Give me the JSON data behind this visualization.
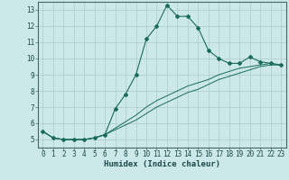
{
  "xlabel": "Humidex (Indice chaleur)",
  "bg_color": "#cce8e8",
  "grid_color": "#aacccc",
  "line_color": "#1a6b5a",
  "xlim": [
    -0.5,
    23.5
  ],
  "ylim": [
    4.5,
    13.5
  ],
  "xticks": [
    0,
    1,
    2,
    3,
    4,
    5,
    6,
    7,
    8,
    9,
    10,
    11,
    12,
    13,
    14,
    15,
    16,
    17,
    18,
    19,
    20,
    21,
    22,
    23
  ],
  "yticks": [
    5,
    6,
    7,
    8,
    9,
    10,
    11,
    12,
    13
  ],
  "main_line_x": [
    0,
    1,
    2,
    3,
    4,
    5,
    6,
    7,
    8,
    9,
    10,
    11,
    12,
    13,
    14,
    15,
    16,
    17,
    18,
    19,
    20,
    21,
    22,
    23
  ],
  "main_line_y": [
    5.5,
    5.1,
    5.0,
    5.0,
    5.0,
    5.1,
    5.3,
    6.9,
    7.8,
    9.0,
    11.2,
    12.0,
    13.3,
    12.6,
    12.6,
    11.9,
    10.5,
    10.0,
    9.7,
    9.7,
    10.1,
    9.8,
    9.7,
    9.6
  ],
  "lower_line1_x": [
    0,
    1,
    2,
    3,
    4,
    5,
    6,
    7,
    8,
    9,
    10,
    11,
    12,
    13,
    14,
    15,
    16,
    17,
    18,
    19,
    20,
    21,
    22,
    23
  ],
  "lower_line1_y": [
    5.5,
    5.1,
    5.0,
    5.0,
    5.0,
    5.1,
    5.3,
    5.7,
    6.1,
    6.5,
    7.0,
    7.4,
    7.7,
    8.0,
    8.3,
    8.5,
    8.7,
    9.0,
    9.2,
    9.4,
    9.5,
    9.6,
    9.7,
    9.6
  ],
  "lower_line2_x": [
    0,
    1,
    2,
    3,
    4,
    5,
    6,
    7,
    8,
    9,
    10,
    11,
    12,
    13,
    14,
    15,
    16,
    17,
    18,
    19,
    20,
    21,
    22,
    23
  ],
  "lower_line2_y": [
    5.5,
    5.1,
    5.0,
    5.0,
    5.0,
    5.1,
    5.3,
    5.6,
    5.9,
    6.2,
    6.6,
    7.0,
    7.3,
    7.6,
    7.9,
    8.1,
    8.4,
    8.7,
    8.9,
    9.1,
    9.3,
    9.5,
    9.6,
    9.6
  ],
  "xlabel_fontsize": 6.5,
  "tick_fontsize": 5.5,
  "marker": "D",
  "markersize": 2.0
}
